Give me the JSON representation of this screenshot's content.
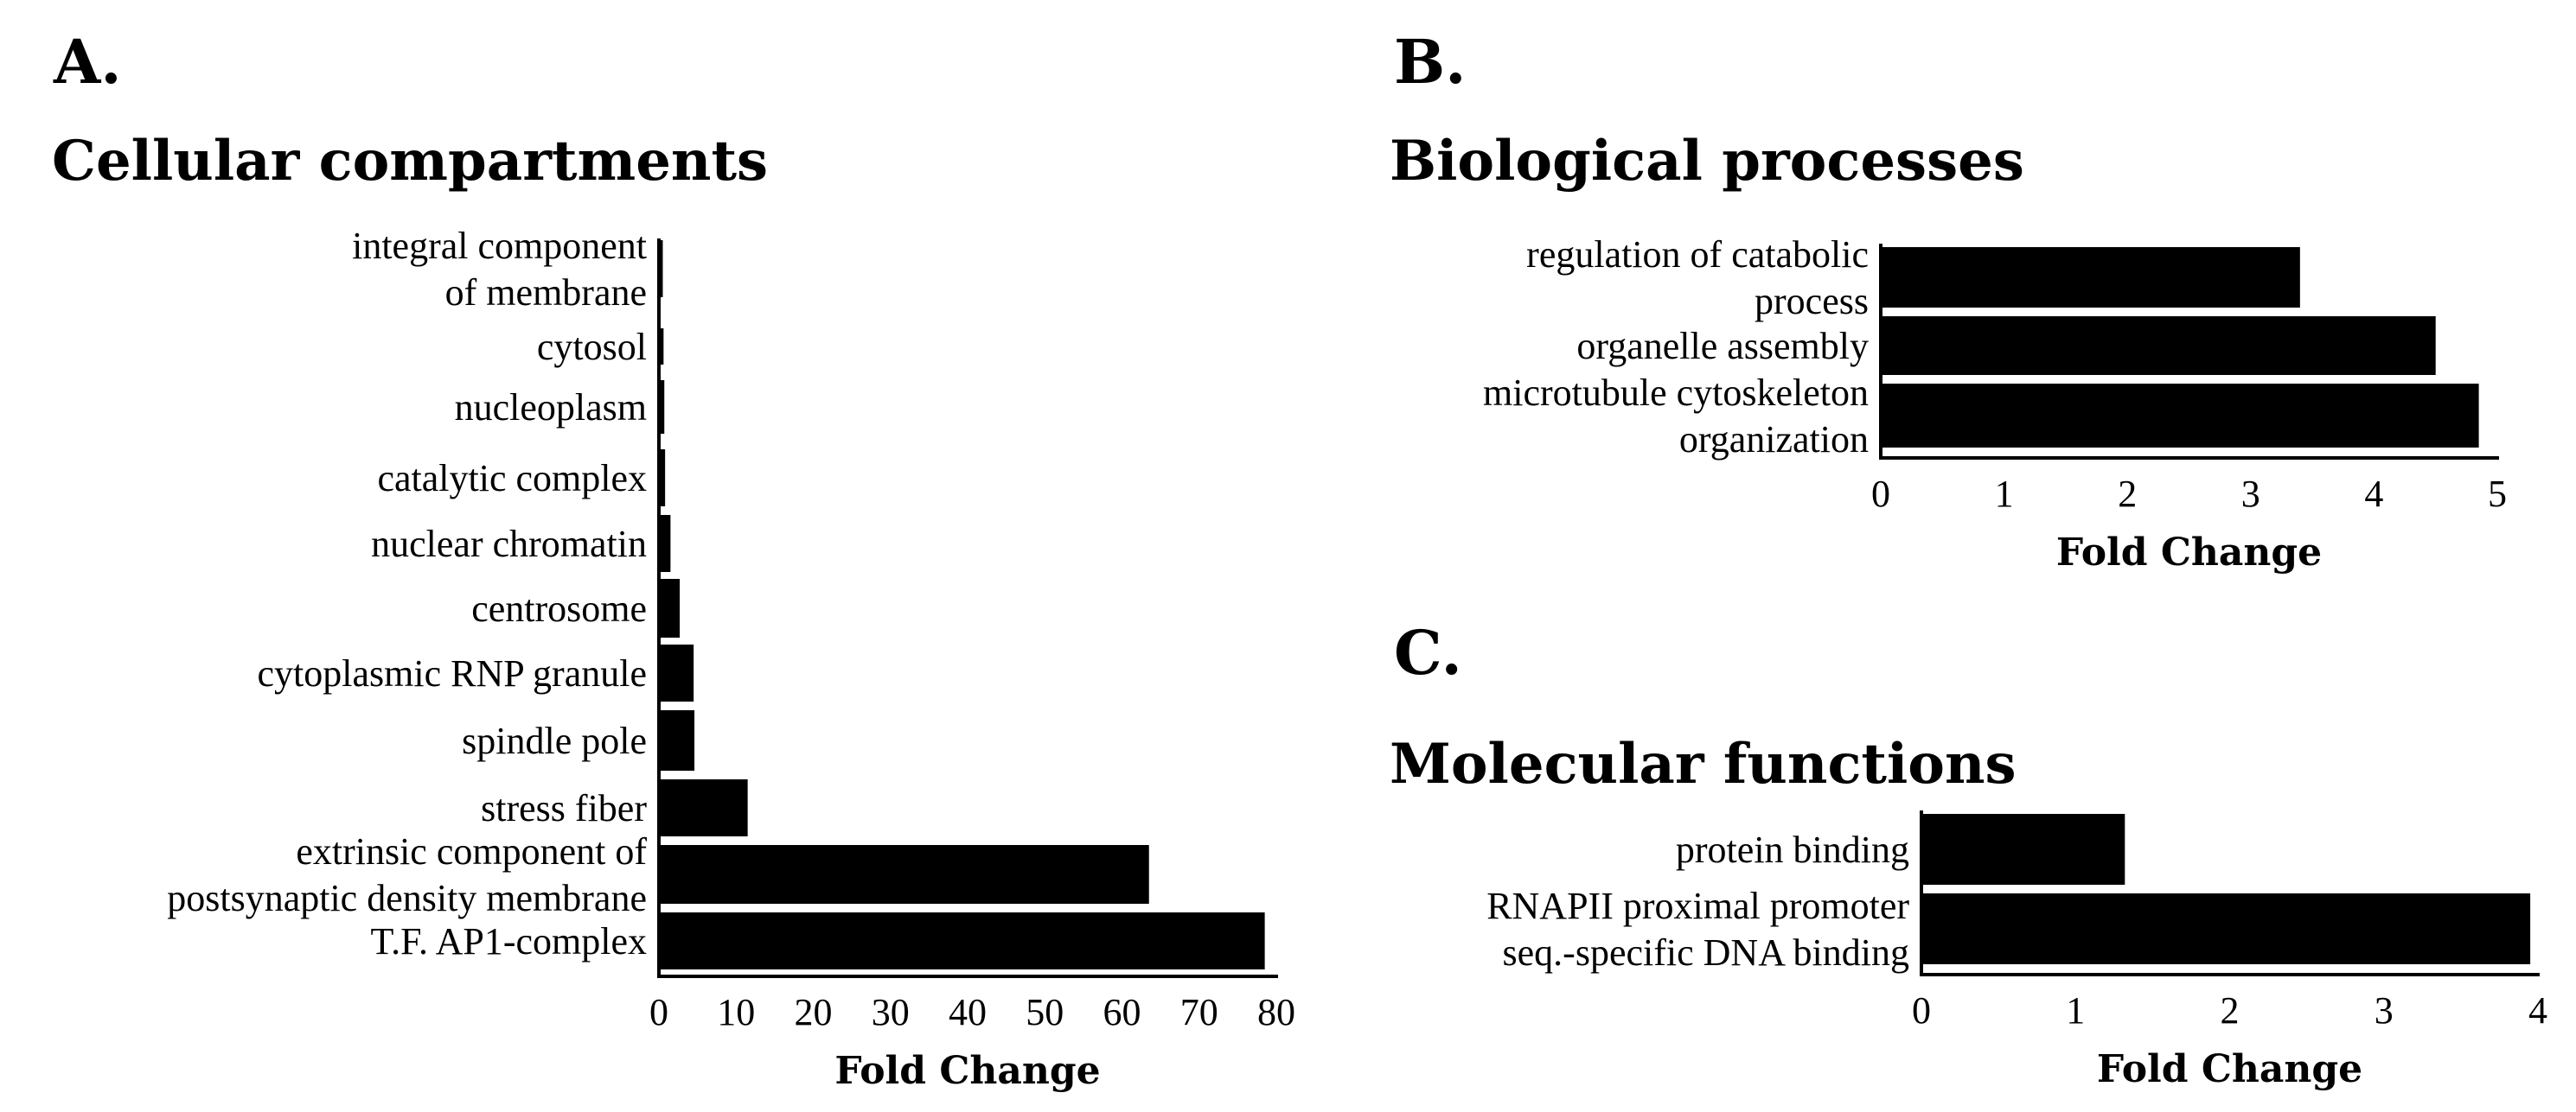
{
  "chart_data": [
    {
      "type": "bar",
      "orientation": "horizontal",
      "panel": "A.",
      "title": "Cellular compartments",
      "xlabel": "Fold Change",
      "xlim": [
        0,
        80
      ],
      "xticks": [
        0,
        10,
        20,
        30,
        40,
        50,
        60,
        70,
        80
      ],
      "bar_color": "#000000",
      "categories": [
        [
          "integral component",
          "of membrane"
        ],
        [
          "cytosol"
        ],
        [
          "nucleoplasm"
        ],
        [
          "catalytic complex"
        ],
        [
          "nuclear chromatin"
        ],
        [
          "centrosome"
        ],
        [
          "cytoplasmic RNP granule"
        ],
        [
          "spindle pole"
        ],
        [
          "stress fiber"
        ],
        [
          "extrinsic component of",
          "postsynaptic density membrane"
        ],
        [
          "T.F. AP1-complex"
        ]
      ],
      "values": [
        0.5,
        0.6,
        0.7,
        0.8,
        1.5,
        2.7,
        4.5,
        4.6,
        11.5,
        63.5,
        78.5
      ]
    },
    {
      "type": "bar",
      "orientation": "horizontal",
      "panel": "B.",
      "title": "Biological processes",
      "xlabel": "Fold Change",
      "xlim": [
        0,
        5
      ],
      "xticks": [
        0,
        1,
        2,
        3,
        4,
        5
      ],
      "bar_color": "#000000",
      "categories": [
        [
          "regulation of catabolic",
          "process"
        ],
        [
          "organelle assembly"
        ],
        [
          "microtubule cytoskeleton",
          "organization"
        ]
      ],
      "values": [
        3.4,
        4.5,
        4.85
      ]
    },
    {
      "type": "bar",
      "orientation": "horizontal",
      "panel": "C.",
      "title": "Molecular functions",
      "xlabel": "Fold Change",
      "xlim": [
        0,
        4
      ],
      "xticks": [
        0,
        1,
        2,
        3,
        4
      ],
      "bar_color": "#000000",
      "categories": [
        [
          "protein binding"
        ],
        [
          "RNAPII proximal promoter",
          "seq.-specific DNA binding"
        ]
      ],
      "values": [
        1.32,
        3.95
      ]
    }
  ]
}
